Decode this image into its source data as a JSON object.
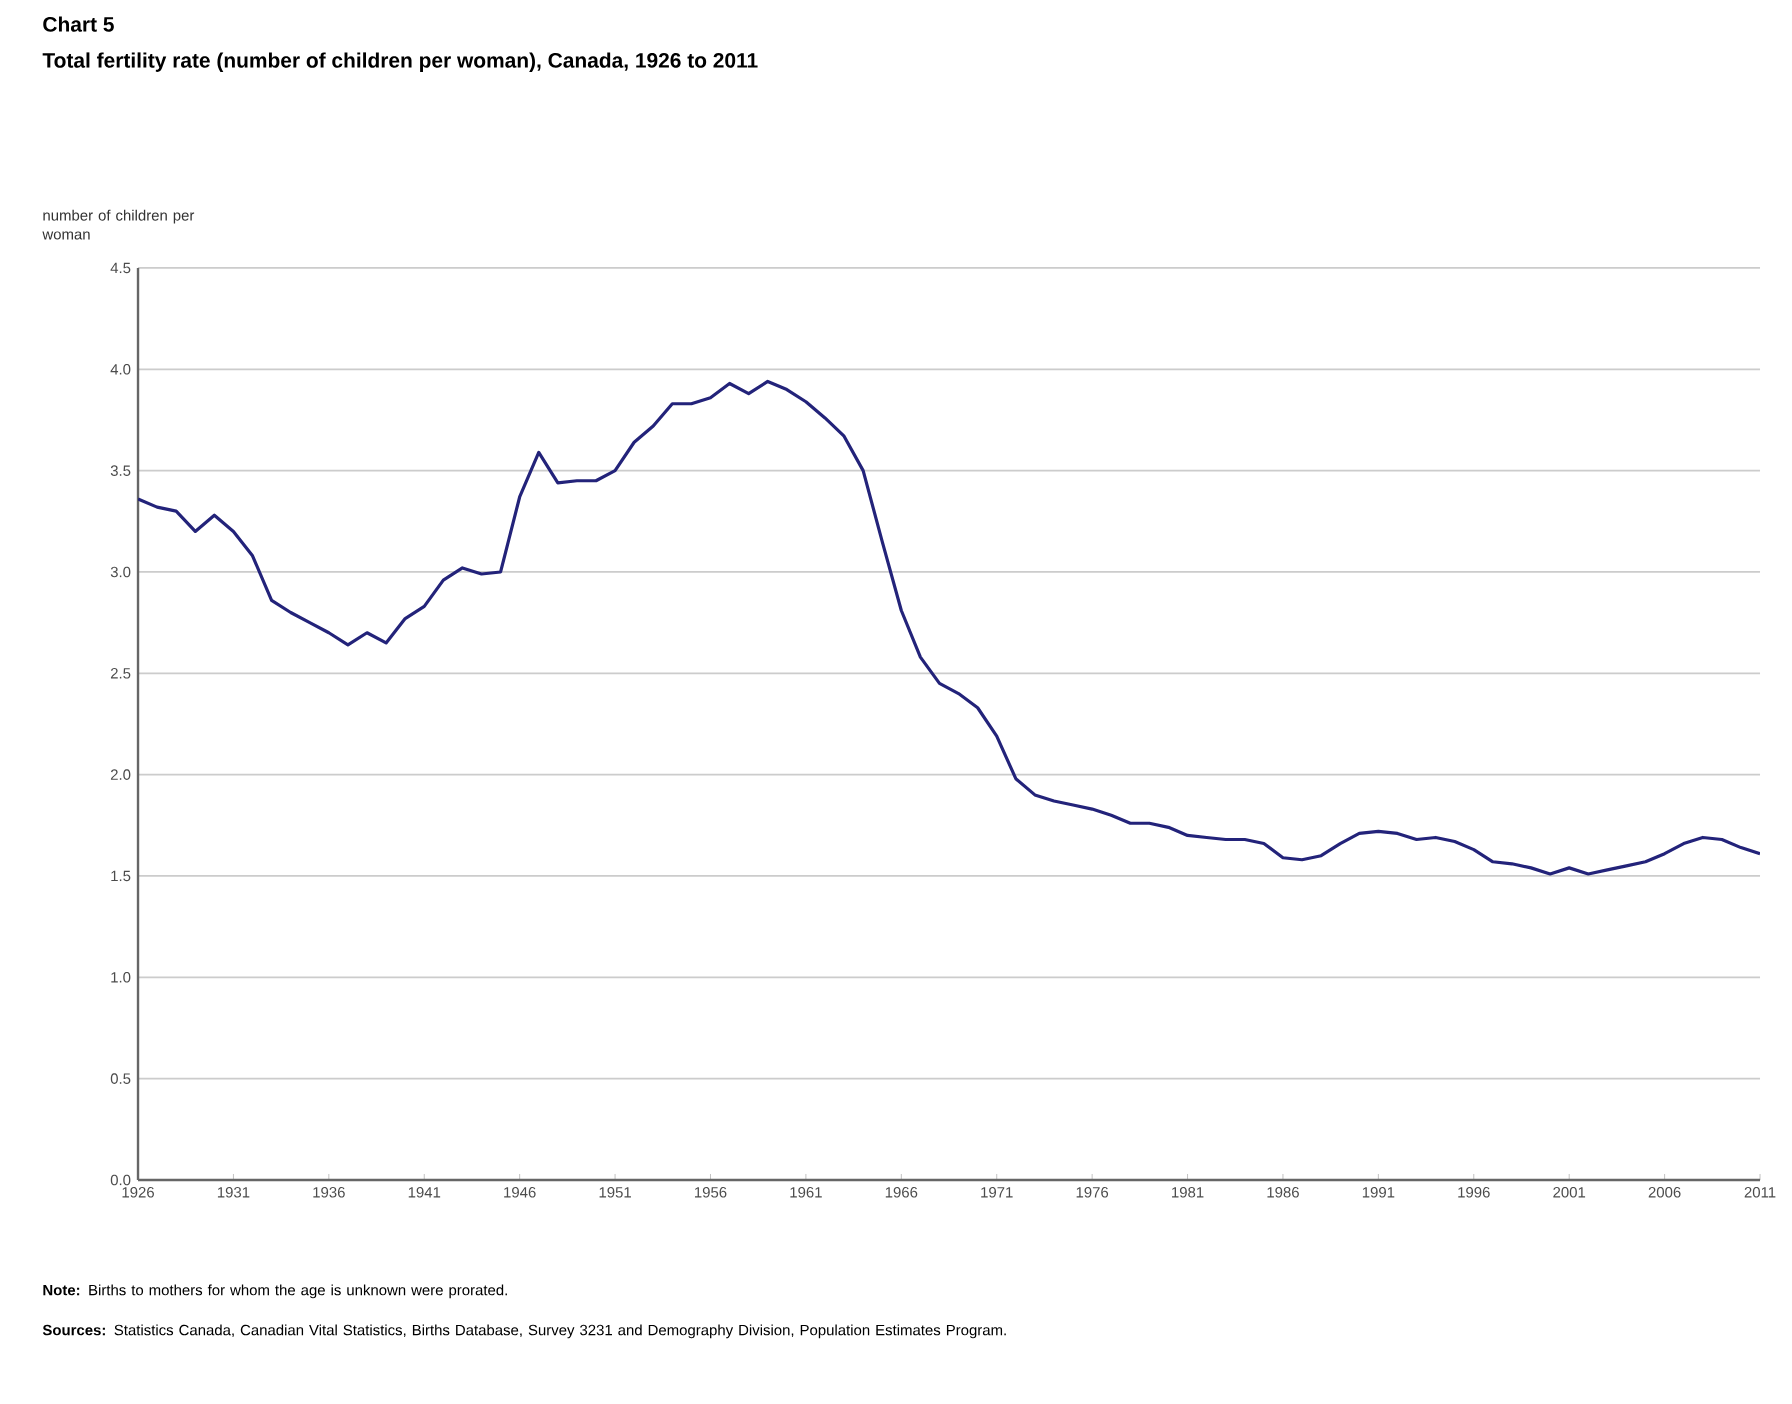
{
  "chart_data": {
    "type": "line",
    "title": "Chart 5",
    "subtitle": "Total fertility rate (number of children per woman), Canada, 1926 to 2011",
    "ylabel": "number of children per woman",
    "annotations": [
      "**Note:** Births to mothers for whom the age is unknown were prorated.",
      "**Sources:** Statistics Canada, Canadian Vital Statistics, Births Database, Survey 3231 and Demography Division, Population Estimates Program."
    ],
    "x": [
      1926,
      1927,
      1928,
      1929,
      1930,
      1931,
      1932,
      1933,
      1934,
      1935,
      1936,
      1937,
      1938,
      1939,
      1940,
      1941,
      1942,
      1943,
      1944,
      1945,
      1946,
      1947,
      1948,
      1949,
      1950,
      1951,
      1952,
      1953,
      1954,
      1955,
      1956,
      1957,
      1958,
      1959,
      1960,
      1961,
      1962,
      1963,
      1964,
      1965,
      1966,
      1967,
      1968,
      1969,
      1970,
      1971,
      1972,
      1973,
      1974,
      1975,
      1976,
      1977,
      1978,
      1979,
      1980,
      1981,
      1982,
      1983,
      1984,
      1985,
      1986,
      1987,
      1988,
      1989,
      1990,
      1991,
      1992,
      1993,
      1994,
      1995,
      1996,
      1997,
      1998,
      1999,
      2000,
      2001,
      2002,
      2003,
      2004,
      2005,
      2006,
      2007,
      2008,
      2009,
      2010,
      2011
    ],
    "series": [
      {
        "color": "#23237a",
        "values": [
          3.36,
          3.32,
          3.3,
          3.2,
          3.28,
          3.2,
          3.08,
          2.86,
          2.8,
          2.75,
          2.7,
          2.64,
          2.7,
          2.65,
          2.77,
          2.83,
          2.96,
          3.02,
          2.99,
          3.0,
          3.37,
          3.59,
          3.44,
          3.45,
          3.45,
          3.5,
          3.64,
          3.72,
          3.83,
          3.83,
          3.86,
          3.93,
          3.88,
          3.94,
          3.9,
          3.84,
          3.76,
          3.67,
          3.5,
          3.15,
          2.81,
          2.58,
          2.45,
          2.4,
          2.33,
          2.19,
          1.98,
          1.9,
          1.87,
          1.85,
          1.83,
          1.8,
          1.76,
          1.76,
          1.74,
          1.7,
          1.69,
          1.68,
          1.68,
          1.66,
          1.59,
          1.58,
          1.6,
          1.66,
          1.71,
          1.72,
          1.71,
          1.68,
          1.69,
          1.67,
          1.63,
          1.57,
          1.56,
          1.54,
          1.51,
          1.54,
          1.51,
          1.53,
          1.55,
          1.57,
          1.61,
          1.66,
          1.69,
          1.68,
          1.64,
          1.61
        ]
      }
    ],
    "xlim": [
      1926,
      2011
    ],
    "xticks": [
      1926,
      1931,
      1936,
      1941,
      1946,
      1951,
      1956,
      1961,
      1966,
      1971,
      1976,
      1981,
      1986,
      1991,
      1996,
      2001,
      2006,
      2011
    ],
    "ylim": [
      0,
      4.5
    ],
    "yticks": [
      {
        "value": 0,
        "label": "0.0"
      },
      {
        "value": 0.5,
        "label": "0.5"
      },
      {
        "value": 1,
        "label": "1.0"
      },
      {
        "value": 1.5,
        "label": "1.5"
      },
      {
        "value": 2,
        "label": "2.0"
      },
      {
        "value": 2.5,
        "label": "2.5"
      },
      {
        "value": 3,
        "label": "3.0"
      },
      {
        "value": 3.5,
        "label": "3.5"
      },
      {
        "value": 4,
        "label": "4.0"
      },
      {
        "value": 4.5,
        "label": "4.5"
      }
    ],
    "grid": "y",
    "marker": "none",
    "line_style": "solid"
  }
}
